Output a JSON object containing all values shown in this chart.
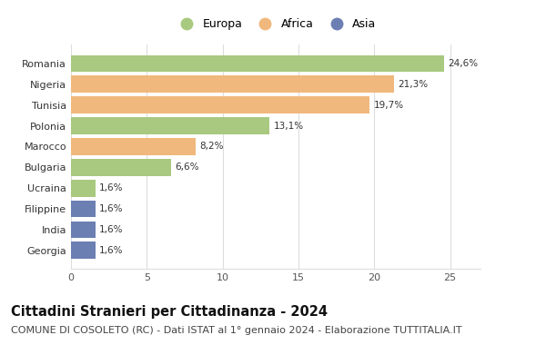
{
  "countries": [
    "Romania",
    "Nigeria",
    "Tunisia",
    "Polonia",
    "Marocco",
    "Bulgaria",
    "Ucraina",
    "Filippine",
    "India",
    "Georgia"
  ],
  "values": [
    24.6,
    21.3,
    19.7,
    13.1,
    8.2,
    6.6,
    1.6,
    1.6,
    1.6,
    1.6
  ],
  "labels": [
    "24,6%",
    "21,3%",
    "19,7%",
    "13,1%",
    "8,2%",
    "6,6%",
    "1,6%",
    "1,6%",
    "1,6%",
    "1,6%"
  ],
  "continents": [
    "Europa",
    "Africa",
    "Africa",
    "Europa",
    "Africa",
    "Europa",
    "Europa",
    "Asia",
    "Asia",
    "Asia"
  ],
  "colors": {
    "Europa": "#a8c97f",
    "Africa": "#f0b87c",
    "Asia": "#6b7fb3"
  },
  "xlim": [
    0,
    27
  ],
  "xticks": [
    0,
    5,
    10,
    15,
    20,
    25
  ],
  "title": "Cittadini Stranieri per Cittadinanza - 2024",
  "subtitle": "COMUNE DI COSOLETO (RC) - Dati ISTAT al 1° gennaio 2024 - Elaborazione TUTTITALIA.IT",
  "background_color": "#ffffff",
  "grid_color": "#dddddd",
  "bar_height": 0.82,
  "title_fontsize": 10.5,
  "subtitle_fontsize": 8,
  "label_fontsize": 7.5,
  "tick_fontsize": 8,
  "legend_fontsize": 9
}
